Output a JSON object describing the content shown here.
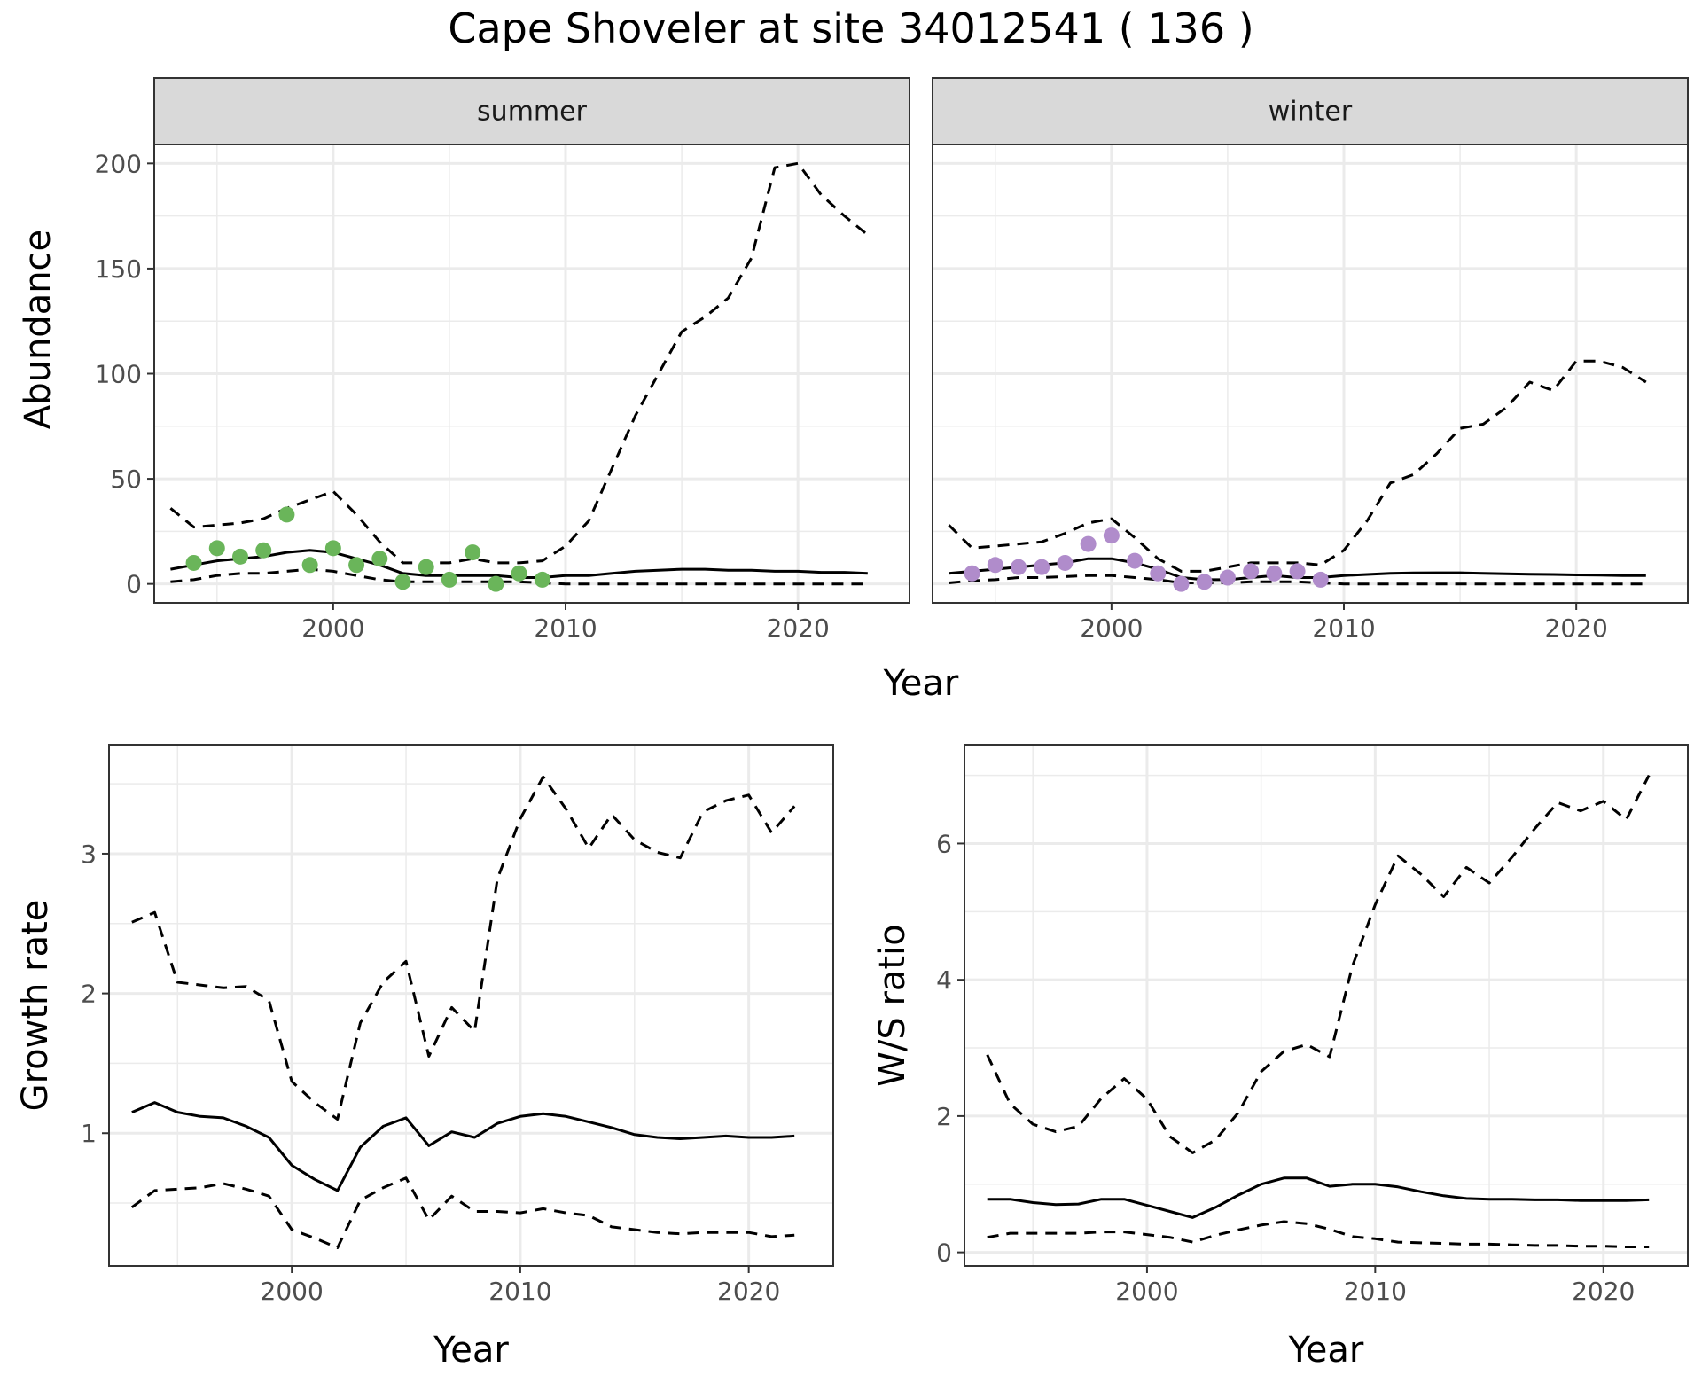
{
  "title": "Cape Shoveler at site 34012541 ( 136 )",
  "colors": {
    "summer_points": "#6ab55a",
    "winter_points": "#b08ccb"
  },
  "chart_data": [
    {
      "type": "line",
      "panel": "summer",
      "xlabel": "Year",
      "ylabel": "Abundance",
      "xlim": [
        1992.3,
        2024.8
      ],
      "ylim": [
        -9,
        209
      ],
      "x_ticks": [
        2000,
        2010,
        2020
      ],
      "y_ticks": [
        0,
        50,
        100,
        150,
        200
      ],
      "grid": true,
      "series": [
        {
          "style": "solid",
          "x": [
            1993,
            1994,
            1995,
            1996,
            1997,
            1998,
            1999,
            2000,
            2001,
            2002,
            2003,
            2004,
            2005,
            2006,
            2007,
            2008,
            2009,
            2010,
            2011,
            2012,
            2013,
            2014,
            2015,
            2016,
            2017,
            2018,
            2019,
            2020,
            2021,
            2022,
            2023
          ],
          "values": [
            7,
            9,
            11,
            12,
            13,
            15,
            16,
            15,
            12,
            9,
            5,
            4,
            4,
            4,
            4,
            3,
            3,
            4,
            4,
            5,
            6,
            6.5,
            7,
            7,
            6.5,
            6.5,
            6,
            6,
            5.5,
            5.5,
            5
          ]
        },
        {
          "style": "dashed",
          "x": [
            1993,
            1994,
            1995,
            1996,
            1997,
            1998,
            1999,
            2000,
            2001,
            2002,
            2003,
            2004,
            2005,
            2006,
            2007,
            2008,
            2009,
            2010,
            2011,
            2012,
            2013,
            2014,
            2015,
            2016,
            2017,
            2018,
            2019,
            2020,
            2021,
            2022,
            2023
          ],
          "values": [
            36,
            27,
            28,
            29,
            31,
            36,
            40,
            44,
            33,
            20,
            10,
            10,
            10,
            12,
            10,
            10,
            11,
            18,
            30,
            55,
            80,
            100,
            120,
            127,
            136,
            155,
            198,
            200,
            185,
            175,
            166
          ]
        },
        {
          "style": "dashed",
          "x": [
            1993,
            1994,
            1995,
            1996,
            1997,
            1998,
            1999,
            2000,
            2001,
            2002,
            2003,
            2004,
            2005,
            2006,
            2007,
            2008,
            2009,
            2010,
            2011,
            2012,
            2013,
            2014,
            2015,
            2016,
            2017,
            2018,
            2019,
            2020,
            2021,
            2022,
            2023
          ],
          "values": [
            1,
            2,
            4,
            5,
            5,
            6,
            7,
            6,
            4,
            2,
            1,
            1,
            1,
            1,
            1,
            1,
            0.5,
            0,
            0,
            0,
            0,
            0,
            0,
            0,
            0,
            0,
            0,
            0,
            0,
            0,
            0
          ]
        },
        {
          "style": "points",
          "x": [
            1994,
            1995,
            1996,
            1997,
            1998,
            1999,
            2000,
            2001,
            2002,
            2003,
            2004,
            2005,
            2006,
            2007,
            2008,
            2009
          ],
          "values": [
            10,
            17,
            13,
            16,
            33,
            9,
            17,
            9,
            12,
            1,
            8,
            2,
            15,
            0,
            5,
            2
          ]
        }
      ]
    },
    {
      "type": "line",
      "panel": "winter",
      "xlabel": "Year",
      "ylabel": "Abundance",
      "xlim": [
        1992.3,
        2024.8
      ],
      "ylim": [
        -9,
        209
      ],
      "x_ticks": [
        2000,
        2010,
        2020
      ],
      "y_ticks": [
        0,
        50,
        100,
        150,
        200
      ],
      "grid": true,
      "series": [
        {
          "style": "solid",
          "x": [
            1993,
            1994,
            1995,
            1996,
            1997,
            1998,
            1999,
            2000,
            2001,
            2002,
            2003,
            2004,
            2005,
            2006,
            2007,
            2008,
            2009,
            2010,
            2011,
            2012,
            2013,
            2014,
            2015,
            2016,
            2017,
            2018,
            2019,
            2020,
            2021,
            2022,
            2023
          ],
          "values": [
            5,
            6,
            7,
            8,
            9,
            10,
            12,
            12,
            10,
            7,
            3,
            2,
            2,
            3,
            4,
            3,
            3,
            4,
            4.5,
            5,
            5.2,
            5.3,
            5.3,
            5,
            4.8,
            4.6,
            4.5,
            4.3,
            4.2,
            4,
            4
          ]
        },
        {
          "style": "dashed",
          "x": [
            1993,
            1994,
            1995,
            1996,
            1997,
            1998,
            1999,
            2000,
            2001,
            2002,
            2003,
            2004,
            2005,
            2006,
            2007,
            2008,
            2009,
            2010,
            2011,
            2012,
            2013,
            2014,
            2015,
            2016,
            2017,
            2018,
            2019,
            2020,
            2021,
            2022,
            2023
          ],
          "values": [
            28,
            17,
            18,
            19,
            20,
            24,
            29,
            31,
            22,
            12,
            6,
            6,
            8,
            10,
            10,
            10,
            9,
            16,
            30,
            48,
            52,
            62,
            74,
            76,
            84,
            96,
            92,
            106,
            106,
            103,
            96
          ]
        },
        {
          "style": "dashed",
          "x": [
            1993,
            1994,
            1995,
            1996,
            1997,
            1998,
            1999,
            2000,
            2001,
            2002,
            2003,
            2004,
            2005,
            2006,
            2007,
            2008,
            2009,
            2010,
            2011,
            2012,
            2013,
            2014,
            2015,
            2016,
            2017,
            2018,
            2019,
            2020,
            2021,
            2022,
            2023
          ],
          "values": [
            0.5,
            1.5,
            2,
            3,
            3,
            3.5,
            4,
            4,
            3,
            2,
            0.5,
            0.5,
            0.5,
            1,
            1,
            1,
            0.5,
            0,
            0,
            0,
            0,
            0,
            0,
            0,
            0,
            0,
            0,
            0,
            0,
            0,
            0
          ]
        },
        {
          "style": "points",
          "x": [
            1994,
            1995,
            1996,
            1997,
            1998,
            1999,
            2000,
            2001,
            2002,
            2003,
            2004,
            2005,
            2006,
            2007,
            2008,
            2009
          ],
          "values": [
            5,
            9,
            8,
            8,
            10,
            19,
            23,
            11,
            5,
            0,
            1,
            3,
            6,
            5,
            6,
            2
          ]
        }
      ]
    },
    {
      "type": "line",
      "panel": "growth",
      "xlabel": "Year",
      "ylabel": "Growth rate",
      "xlim": [
        1992.0,
        2023.7
      ],
      "ylim": [
        0.05,
        3.78
      ],
      "x_ticks": [
        2000,
        2010,
        2020
      ],
      "y_ticks": [
        1,
        2,
        3
      ],
      "grid": true,
      "series": [
        {
          "style": "solid",
          "x": [
            1993,
            1994,
            1995,
            1996,
            1997,
            1998,
            1999,
            2000,
            2001,
            2002,
            2003,
            2004,
            2005,
            2006,
            2007,
            2008,
            2009,
            2010,
            2011,
            2012,
            2013,
            2014,
            2015,
            2016,
            2017,
            2018,
            2019,
            2020,
            2021,
            2022
          ],
          "values": [
            1.15,
            1.22,
            1.15,
            1.12,
            1.11,
            1.05,
            0.97,
            0.77,
            0.67,
            0.59,
            0.9,
            1.05,
            1.11,
            0.91,
            1.01,
            0.97,
            1.07,
            1.12,
            1.14,
            1.12,
            1.08,
            1.04,
            0.99,
            0.97,
            0.96,
            0.97,
            0.98,
            0.97,
            0.97,
            0.98
          ]
        },
        {
          "style": "dashed",
          "x": [
            1993,
            1994,
            1995,
            1996,
            1997,
            1998,
            1999,
            2000,
            2001,
            2002,
            2003,
            2004,
            2005,
            2006,
            2007,
            2008,
            2009,
            2010,
            2011,
            2012,
            2013,
            2014,
            2015,
            2016,
            2017,
            2018,
            2019,
            2020,
            2021,
            2022
          ],
          "values": [
            2.51,
            2.58,
            2.08,
            2.06,
            2.04,
            2.05,
            1.95,
            1.37,
            1.22,
            1.1,
            1.79,
            2.08,
            2.23,
            1.55,
            1.9,
            1.73,
            2.82,
            3.25,
            3.55,
            3.32,
            3.04,
            3.28,
            3.1,
            3.01,
            2.97,
            3.3,
            3.38,
            3.42,
            3.15,
            3.34
          ]
        },
        {
          "style": "dashed",
          "x": [
            1993,
            1994,
            1995,
            1996,
            1997,
            1998,
            1999,
            2000,
            2001,
            2002,
            2003,
            2004,
            2005,
            2006,
            2007,
            2008,
            2009,
            2010,
            2011,
            2012,
            2013,
            2014,
            2015,
            2016,
            2017,
            2018,
            2019,
            2020,
            2021,
            2022
          ],
          "values": [
            0.47,
            0.59,
            0.6,
            0.61,
            0.64,
            0.6,
            0.55,
            0.31,
            0.25,
            0.18,
            0.52,
            0.61,
            0.68,
            0.38,
            0.55,
            0.44,
            0.44,
            0.43,
            0.46,
            0.43,
            0.41,
            0.33,
            0.31,
            0.29,
            0.28,
            0.29,
            0.29,
            0.29,
            0.26,
            0.27
          ]
        }
      ]
    },
    {
      "type": "line",
      "panel": "ratio",
      "xlabel": "Year",
      "ylabel": "W/S ratio",
      "xlim": [
        1992.0,
        2023.7
      ],
      "ylim": [
        -0.2,
        7.45
      ],
      "x_ticks": [
        2000,
        2010,
        2020
      ],
      "y_ticks": [
        0,
        2,
        4,
        6
      ],
      "grid": true,
      "series": [
        {
          "style": "solid",
          "x": [
            1993,
            1994,
            1995,
            1996,
            1997,
            1998,
            1999,
            2000,
            2001,
            2002,
            2003,
            2004,
            2005,
            2006,
            2007,
            2008,
            2009,
            2010,
            2011,
            2012,
            2013,
            2014,
            2015,
            2016,
            2017,
            2018,
            2019,
            2020,
            2021,
            2022
          ],
          "values": [
            0.78,
            0.78,
            0.73,
            0.7,
            0.71,
            0.78,
            0.78,
            0.69,
            0.6,
            0.51,
            0.66,
            0.84,
            1.0,
            1.09,
            1.09,
            0.97,
            1.0,
            1.0,
            0.96,
            0.89,
            0.83,
            0.79,
            0.78,
            0.78,
            0.77,
            0.77,
            0.76,
            0.76,
            0.76,
            0.77
          ]
        },
        {
          "style": "dashed",
          "x": [
            1993,
            1994,
            1995,
            1996,
            1997,
            1998,
            1999,
            2000,
            2001,
            2002,
            2003,
            2004,
            2005,
            2006,
            2007,
            2008,
            2009,
            2010,
            2011,
            2012,
            2013,
            2014,
            2015,
            2016,
            2017,
            2018,
            2019,
            2020,
            2021,
            2022
          ],
          "values": [
            2.9,
            2.18,
            1.88,
            1.77,
            1.85,
            2.26,
            2.55,
            2.25,
            1.7,
            1.46,
            1.65,
            2.05,
            2.65,
            2.95,
            3.05,
            2.87,
            4.2,
            5.1,
            5.82,
            5.55,
            5.22,
            5.65,
            5.42,
            5.8,
            6.22,
            6.6,
            6.48,
            6.62,
            6.35,
            7.0
          ]
        },
        {
          "style": "dashed",
          "x": [
            1993,
            1994,
            1995,
            1996,
            1997,
            1998,
            1999,
            2000,
            2001,
            2002,
            2003,
            2004,
            2005,
            2006,
            2007,
            2008,
            2009,
            2010,
            2011,
            2012,
            2013,
            2014,
            2015,
            2016,
            2017,
            2018,
            2019,
            2020,
            2021,
            2022
          ],
          "values": [
            0.22,
            0.28,
            0.28,
            0.28,
            0.28,
            0.3,
            0.3,
            0.26,
            0.22,
            0.15,
            0.25,
            0.33,
            0.4,
            0.45,
            0.42,
            0.34,
            0.23,
            0.2,
            0.15,
            0.14,
            0.13,
            0.12,
            0.12,
            0.11,
            0.1,
            0.1,
            0.09,
            0.09,
            0.08,
            0.08
          ]
        }
      ]
    }
  ],
  "strip_labels": [
    "summer",
    "winter"
  ]
}
